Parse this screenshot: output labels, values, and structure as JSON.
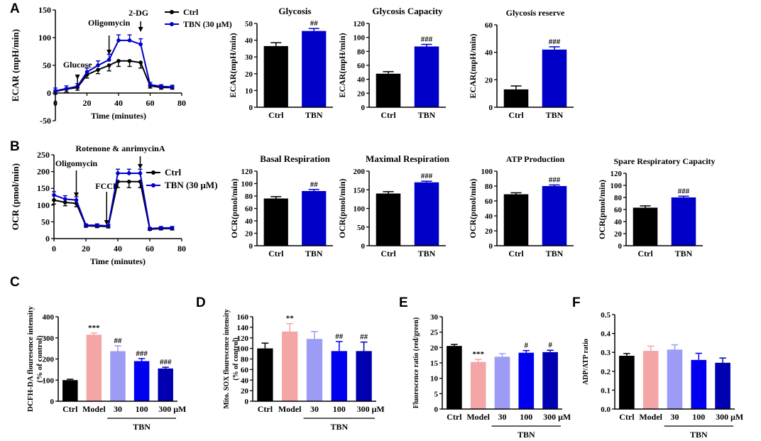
{
  "colors": {
    "ctrl": "#000000",
    "tbn": "#0000c8",
    "model": "#f4a6a6",
    "tbn30": "#9c9cf6",
    "tbn100": "#0000ee",
    "tbn300": "#0000b0"
  },
  "chart_data": [
    {
      "id": "A1",
      "panel": "A",
      "type": "line",
      "ylabel": "ECAR (mpH/min)",
      "xlabel": "Time (minutes)",
      "xlim": [
        0,
        80
      ],
      "ylim": [
        -50,
        150
      ],
      "xticks": [
        "0",
        "20",
        "40",
        "60",
        "80"
      ],
      "yticks": [
        "-50",
        "0",
        "50",
        "100",
        "150"
      ],
      "annotations": [
        "Glucose",
        "Oligomycin",
        "2-DG"
      ],
      "x": [
        0,
        7,
        14,
        20,
        27,
        34,
        40,
        47,
        54,
        60,
        67,
        74
      ],
      "series": [
        {
          "name": "Ctrl",
          "colorKey": "ctrl",
          "values": [
            3,
            7,
            10,
            33,
            42,
            50,
            58,
            58,
            55,
            13,
            10,
            10
          ],
          "err": [
            5,
            5,
            5,
            6,
            7,
            10,
            10,
            10,
            10,
            4,
            3,
            3
          ]
        },
        {
          "name": "TBN (30 μM)",
          "colorKey": "tbn",
          "values": [
            4,
            8,
            12,
            38,
            50,
            60,
            95,
            95,
            88,
            15,
            12,
            11
          ],
          "err": [
            5,
            5,
            5,
            7,
            8,
            10,
            10,
            10,
            10,
            4,
            3,
            3
          ]
        }
      ]
    },
    {
      "id": "A2",
      "type": "bar",
      "title": "Glycosis",
      "ylabel": "ECAR(mpH/min)",
      "ylim": [
        0,
        50
      ],
      "yticks": [
        "0",
        "10",
        "20",
        "30",
        "40",
        "50"
      ],
      "categories": [
        "Ctrl",
        "TBN"
      ],
      "values": [
        36.5,
        45.5
      ],
      "err": [
        2,
        1.5
      ],
      "colorKeys": [
        "ctrl",
        "tbn"
      ],
      "sig": [
        "",
        "##"
      ]
    },
    {
      "id": "A3",
      "type": "bar",
      "title": "Glycosis Capacity",
      "ylabel": "ECAR(mpH/min)",
      "ylim": [
        0,
        120
      ],
      "yticks": [
        "0",
        "20",
        "40",
        "60",
        "80",
        "100",
        "120"
      ],
      "categories": [
        "Ctrl",
        "TBN"
      ],
      "values": [
        48,
        87
      ],
      "err": [
        3,
        3
      ],
      "colorKeys": [
        "ctrl",
        "tbn"
      ],
      "sig": [
        "",
        "###"
      ]
    },
    {
      "id": "A4",
      "type": "bar",
      "title": "Glycosis reserve",
      "ylabel": "ECAR(mpH/min)",
      "ylim": [
        0,
        60
      ],
      "yticks": [
        "0",
        "20",
        "40",
        "60"
      ],
      "categories": [
        "Ctrl",
        "TBN"
      ],
      "values": [
        13,
        42
      ],
      "err": [
        2.5,
        2
      ],
      "colorKeys": [
        "ctrl",
        "tbn"
      ],
      "sig": [
        "",
        "###"
      ]
    },
    {
      "id": "B1",
      "panel": "B",
      "type": "line",
      "ylabel": "OCR (pmol/min)",
      "xlabel": "Time (minutes)",
      "xlim": [
        0,
        80
      ],
      "ylim": [
        0,
        250
      ],
      "xticks": [
        "0",
        "20",
        "40",
        "60",
        "80"
      ],
      "yticks": [
        "0",
        "50",
        "100",
        "150",
        "200",
        "250"
      ],
      "annotations": [
        "Oligomycin",
        "FCCP",
        "Rotenone & anrimycinA"
      ],
      "x": [
        0,
        7,
        14,
        20,
        27,
        34,
        40,
        47,
        54,
        60,
        67,
        74
      ],
      "series": [
        {
          "name": "Ctrl",
          "colorKey": "ctrl",
          "values": [
            115,
            108,
            105,
            38,
            37,
            36,
            170,
            170,
            170,
            28,
            30,
            30
          ],
          "err": [
            12,
            10,
            10,
            4,
            4,
            4,
            18,
            18,
            18,
            3,
            4,
            4
          ]
        },
        {
          "name": "TBN (30 μM)",
          "colorKey": "tbn",
          "values": [
            130,
            118,
            115,
            40,
            40,
            38,
            195,
            195,
            195,
            30,
            32,
            32
          ],
          "err": [
            10,
            10,
            10,
            4,
            4,
            4,
            12,
            12,
            12,
            3,
            4,
            4
          ]
        }
      ]
    },
    {
      "id": "B2",
      "type": "bar",
      "title": "Basal Respiration",
      "ylabel": "OCR(pmol/min)",
      "ylim": [
        0,
        120
      ],
      "yticks": [
        "0",
        "20",
        "40",
        "60",
        "80",
        "100",
        "120"
      ],
      "categories": [
        "Ctrl",
        "TBN"
      ],
      "values": [
        76,
        88
      ],
      "err": [
        3,
        2.5
      ],
      "colorKeys": [
        "ctrl",
        "tbn"
      ],
      "sig": [
        "",
        "##"
      ]
    },
    {
      "id": "B3",
      "type": "bar",
      "title": "Maximal Respiration",
      "ylabel": "OCR(pmol/min)",
      "ylim": [
        0,
        200
      ],
      "yticks": [
        "0",
        "50",
        "100",
        "150",
        "200"
      ],
      "categories": [
        "Ctrl",
        "TBN"
      ],
      "values": [
        140,
        170
      ],
      "err": [
        5,
        3
      ],
      "colorKeys": [
        "ctrl",
        "tbn"
      ],
      "sig": [
        "",
        "###"
      ]
    },
    {
      "id": "B4",
      "type": "bar",
      "title": "ATP Production",
      "ylabel": "OCR(pmol/min)",
      "ylim": [
        0,
        100
      ],
      "yticks": [
        "0",
        "20",
        "40",
        "60",
        "80",
        "100"
      ],
      "categories": [
        "Ctrl",
        "TBN"
      ],
      "values": [
        69,
        80
      ],
      "err": [
        2,
        1.5
      ],
      "colorKeys": [
        "ctrl",
        "tbn"
      ],
      "sig": [
        "",
        "###"
      ]
    },
    {
      "id": "B5",
      "type": "bar",
      "title": "Spare Respiratory Capacity",
      "ylabel": "OCR(pmol/min)",
      "ylim": [
        0,
        120
      ],
      "yticks": [
        "0",
        "20",
        "40",
        "60",
        "80",
        "100",
        "120"
      ],
      "categories": [
        "Ctrl",
        "TBN"
      ],
      "values": [
        63,
        80
      ],
      "err": [
        3,
        2
      ],
      "colorKeys": [
        "ctrl",
        "tbn"
      ],
      "sig": [
        "",
        "###"
      ]
    },
    {
      "id": "C",
      "panel": "C",
      "type": "bar",
      "ylabel": "DCFH-DA flouresence intensity (% of control)",
      "ylim": [
        0,
        400
      ],
      "yticks": [
        "0",
        "100",
        "200",
        "300",
        "400"
      ],
      "categories": [
        "Ctrl",
        "Model",
        "30",
        "100",
        "300 μM"
      ],
      "group_label": "TBN",
      "values": [
        100,
        315,
        237,
        190,
        155
      ],
      "err": [
        4,
        8,
        25,
        12,
        6
      ],
      "colorKeys": [
        "ctrl",
        "model",
        "tbn30",
        "tbn100",
        "tbn300"
      ],
      "sig": [
        "",
        "***",
        "##",
        "###",
        "###"
      ]
    },
    {
      "id": "D",
      "panel": "D",
      "type": "bar",
      "ylabel": "Mito. SOX flourescence intensity (% of control)",
      "ylim": [
        0,
        160
      ],
      "yticks": [
        "0",
        "20",
        "40",
        "60",
        "80",
        "100",
        "120",
        "140",
        "160"
      ],
      "categories": [
        "Ctrl",
        "Model",
        "30",
        "100",
        "300 μM"
      ],
      "group_label": "TBN",
      "values": [
        100,
        132,
        118,
        95,
        95
      ],
      "err": [
        10,
        15,
        14,
        18,
        17
      ],
      "colorKeys": [
        "ctrl",
        "model",
        "tbn30",
        "tbn100",
        "tbn300"
      ],
      "sig": [
        "",
        "**",
        "",
        "##",
        "##"
      ]
    },
    {
      "id": "E",
      "panel": "E",
      "type": "bar",
      "ylabel": "Fluorescence ratio (red/green)",
      "ylim": [
        0,
        30
      ],
      "yticks": [
        "0",
        "5",
        "10",
        "15",
        "20",
        "25",
        "30"
      ],
      "categories": [
        "Ctrl",
        "Model",
        "30",
        "100",
        "300 μM"
      ],
      "group_label": "TBN",
      "values": [
        20.5,
        15.3,
        17,
        18.3,
        18.5
      ],
      "err": [
        0.5,
        0.8,
        1,
        0.7,
        0.6
      ],
      "colorKeys": [
        "ctrl",
        "model",
        "tbn30",
        "tbn100",
        "tbn300"
      ],
      "sig": [
        "",
        "***",
        "",
        "#",
        "#"
      ]
    },
    {
      "id": "F",
      "panel": "F",
      "type": "bar",
      "ylabel": "ADP/ATP ratio",
      "ylim": [
        0,
        0.5
      ],
      "yticks": [
        "0.0",
        "0.1",
        "0.2",
        "0.3",
        "0.4",
        "0.5"
      ],
      "categories": [
        "Ctrl",
        "Model",
        "30",
        "100",
        "300 μM"
      ],
      "group_label": "TBN",
      "values": [
        0.282,
        0.308,
        0.315,
        0.26,
        0.245
      ],
      "err": [
        0.012,
        0.025,
        0.025,
        0.035,
        0.025
      ],
      "colorKeys": [
        "ctrl",
        "model",
        "tbn30",
        "tbn100",
        "tbn300"
      ],
      "sig": [
        "",
        "",
        "",
        "",
        ""
      ]
    }
  ]
}
